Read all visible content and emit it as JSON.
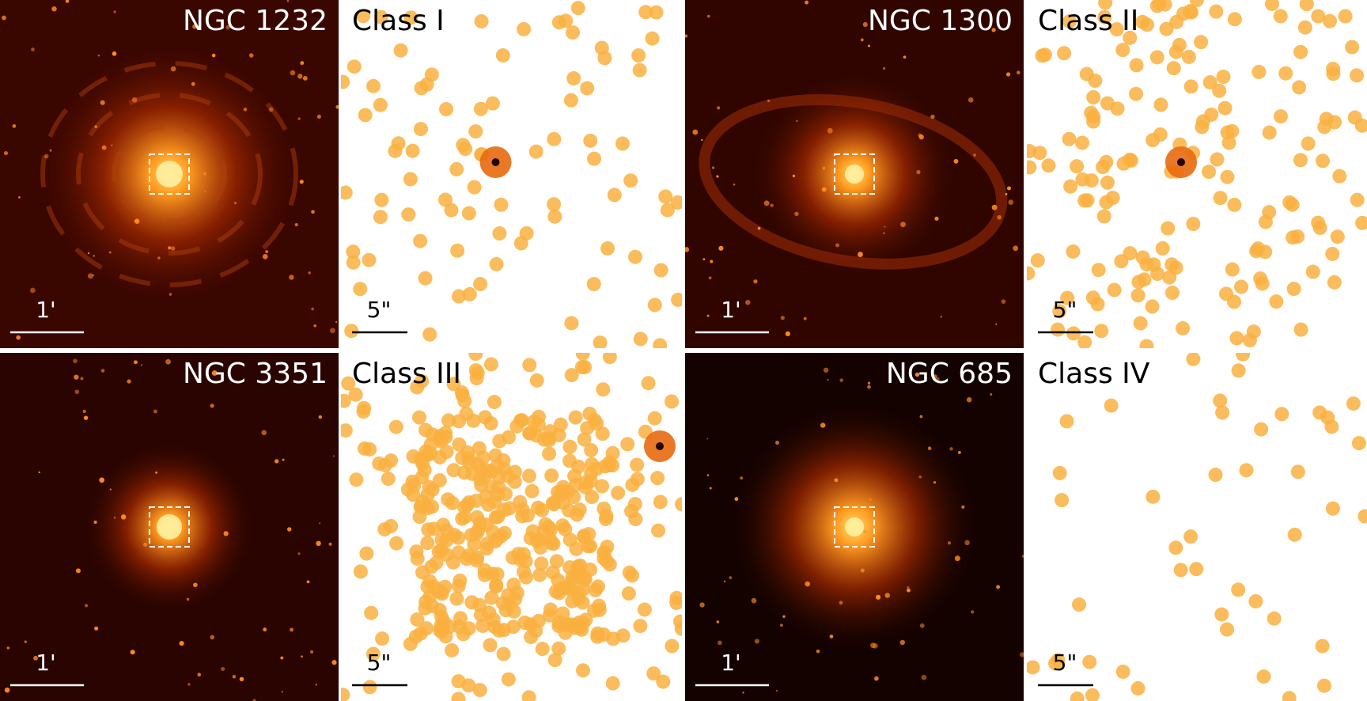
{
  "panels": [
    {
      "galaxy": "NGC 1232",
      "class": "Class I",
      "galaxy_scale": "1'",
      "zoom_scale": "5\""
    },
    {
      "galaxy": "NGC 1300",
      "class": "Class II",
      "galaxy_scale": "1'",
      "zoom_scale": "5\""
    },
    {
      "galaxy": "NGC 3351",
      "class": "Class III",
      "galaxy_scale": "1'",
      "zoom_scale": "5\""
    },
    {
      "galaxy": "NGC 685",
      "class": "Class IV",
      "galaxy_scale": "1'",
      "zoom_scale": "5\""
    }
  ]
}
